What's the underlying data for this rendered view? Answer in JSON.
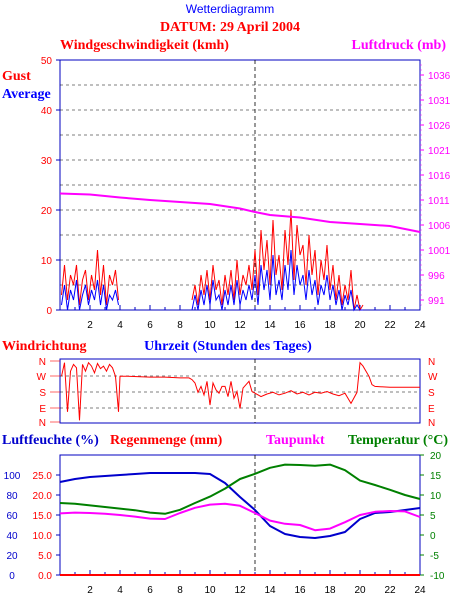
{
  "header": {
    "title": "Wetterdiagramm",
    "date_label": "DATUM: 29 April 2004"
  },
  "colors": {
    "red": "#ff0000",
    "blue": "#0000ff",
    "magenta": "#ff00ff",
    "green": "#008000",
    "darkblue": "#0000cc",
    "axis": "#0000c0"
  },
  "chart_data": [
    {
      "type": "line",
      "id": "wind-pressure",
      "title": "Windgeschwindigkeit (kmh)",
      "ylabel_right": "Luftdruck (mb)",
      "legend": [
        "Gust",
        "Average"
      ],
      "xlim": [
        0,
        24
      ],
      "ylim": [
        0,
        50
      ],
      "y_ticks": [
        0,
        10,
        20,
        30,
        40,
        50
      ],
      "ylim_right": [
        989,
        1039
      ],
      "y_ticks_right": [
        991,
        996,
        1001,
        1006,
        1011,
        1016,
        1021,
        1026,
        1031,
        1036
      ],
      "x_ticks": [
        2,
        4,
        6,
        8,
        10,
        12,
        14,
        16,
        18,
        20,
        22,
        24
      ],
      "grid": true,
      "series": [
        {
          "name": "Gust",
          "color": "#ff0000",
          "x": [
            0.1,
            0.3,
            0.5,
            0.7,
            0.9,
            1.1,
            1.3,
            1.5,
            1.7,
            1.9,
            2.1,
            2.3,
            2.5,
            2.7,
            2.9,
            3.1,
            3.3,
            3.5,
            3.7,
            3.9,
            8.8,
            9.0,
            9.2,
            9.4,
            9.6,
            9.8,
            10.0,
            10.2,
            10.4,
            10.6,
            10.8,
            11.0,
            11.2,
            11.4,
            11.6,
            11.8,
            12.0,
            12.2,
            12.4,
            12.6,
            12.8,
            13.0,
            13.2,
            13.4,
            13.6,
            13.8,
            14.0,
            14.2,
            14.4,
            14.6,
            14.8,
            15.0,
            15.2,
            15.4,
            15.6,
            15.8,
            16.0,
            16.2,
            16.4,
            16.6,
            16.8,
            17.0,
            17.2,
            17.4,
            17.6,
            17.8,
            18.0,
            18.2,
            18.4,
            18.6,
            18.8,
            19.0,
            19.2,
            19.4,
            19.6,
            19.8,
            20.0,
            20.2
          ],
          "y": [
            3,
            9,
            2,
            7,
            5,
            9,
            1,
            6,
            8,
            2,
            7,
            4,
            12,
            3,
            9,
            1,
            7,
            5,
            8,
            2,
            2,
            5,
            1,
            7,
            3,
            8,
            2,
            9,
            4,
            6,
            1,
            7,
            3,
            8,
            2,
            10,
            3,
            7,
            5,
            9,
            4,
            12,
            3,
            16,
            8,
            14,
            5,
            18,
            7,
            11,
            4,
            16,
            9,
            20,
            6,
            17,
            11,
            13,
            5,
            15,
            7,
            12,
            3,
            10,
            6,
            13,
            4,
            9,
            2,
            7,
            1,
            5,
            2,
            8,
            0,
            3,
            0,
            1
          ],
          "x_pressure_note": ""
        },
        {
          "name": "Average",
          "color": "#0000ff",
          "x": [
            0.1,
            0.3,
            0.5,
            0.7,
            0.9,
            1.1,
            1.3,
            1.5,
            1.7,
            1.9,
            2.1,
            2.3,
            2.5,
            2.7,
            2.9,
            3.1,
            3.3,
            3.5,
            3.7,
            3.9,
            8.8,
            9.0,
            9.2,
            9.4,
            9.6,
            9.8,
            10.0,
            10.2,
            10.4,
            10.6,
            10.8,
            11.0,
            11.2,
            11.4,
            11.6,
            11.8,
            12.0,
            12.2,
            12.4,
            12.6,
            12.8,
            13.0,
            13.2,
            13.4,
            13.6,
            13.8,
            14.0,
            14.2,
            14.4,
            14.6,
            14.8,
            15.0,
            15.2,
            15.4,
            15.6,
            15.8,
            16.0,
            16.2,
            16.4,
            16.6,
            16.8,
            17.0,
            17.2,
            17.4,
            17.6,
            17.8,
            18.0,
            18.2,
            18.4,
            18.6,
            18.8,
            19.0,
            19.2,
            19.4,
            19.6,
            19.8,
            20.0,
            20.2
          ],
          "y": [
            1,
            5,
            0,
            4,
            2,
            6,
            0,
            3,
            5,
            1,
            4,
            2,
            6,
            1,
            5,
            0,
            3,
            2,
            4,
            1,
            0,
            3,
            0,
            4,
            1,
            5,
            1,
            6,
            2,
            3,
            0,
            4,
            1,
            5,
            1,
            6,
            1,
            4,
            2,
            5,
            2,
            7,
            1,
            9,
            4,
            8,
            2,
            11,
            3,
            6,
            2,
            9,
            4,
            12,
            3,
            9,
            5,
            7,
            2,
            8,
            3,
            6,
            1,
            5,
            3,
            7,
            2,
            5,
            1,
            4,
            0,
            3,
            1,
            4,
            0,
            1,
            0,
            0
          ]
        },
        {
          "name": "Luftdruck",
          "color": "#ff00ff",
          "axis": "right",
          "x": [
            0,
            2,
            4,
            6,
            8,
            10,
            12,
            13,
            14,
            16,
            18,
            20,
            22,
            24
          ],
          "y": [
            1012.3,
            1012.1,
            1011.5,
            1011.0,
            1010.6,
            1010.2,
            1009.3,
            1008.6,
            1008.0,
            1007.5,
            1006.6,
            1006.2,
            1005.8,
            1004.6
          ]
        }
      ]
    },
    {
      "type": "line",
      "id": "wind-direction",
      "title": "Windrichtung",
      "xlabel": "Uhrzeit (Stunden des Tages)",
      "xlim": [
        0,
        24
      ],
      "y_ticks": [
        "N",
        "W",
        "S",
        "E",
        "N"
      ],
      "grid": true,
      "series": [
        {
          "name": "Windrichtung",
          "color": "#ff0000",
          "x": [
            0.1,
            0.3,
            0.5,
            0.7,
            0.9,
            1.1,
            1.3,
            1.5,
            1.7,
            1.9,
            2.1,
            2.3,
            2.5,
            2.7,
            2.9,
            3.1,
            3.3,
            3.5,
            3.7,
            3.9,
            4.0,
            4.5,
            6,
            7,
            8,
            8.6,
            8.8,
            9.0,
            9.2,
            9.4,
            9.6,
            9.8,
            10.0,
            10.2,
            10.4,
            10.6,
            10.8,
            11.0,
            11.2,
            11.4,
            11.6,
            11.8,
            12.0,
            12.2,
            12.4,
            12.6,
            12.8,
            13.0,
            13.4,
            13.8,
            14.2,
            14.6,
            15.0,
            15.4,
            15.8,
            16.2,
            16.6,
            17.0,
            17.4,
            17.8,
            18.2,
            18.6,
            19.0,
            19.4,
            19.8,
            20.0,
            20.2,
            20.4,
            20.6,
            20.8,
            21.0,
            22,
            23,
            24
          ],
          "y": [
            270,
            350,
            60,
            300,
            340,
            320,
            10,
            340,
            300,
            350,
            330,
            290,
            345,
            315,
            330,
            300,
            340,
            320,
            270,
            60,
            270,
            270,
            265,
            265,
            260,
            260,
            250,
            230,
            175,
            210,
            160,
            240,
            100,
            230,
            190,
            170,
            210,
            210,
            150,
            240,
            140,
            180,
            80,
            200,
            220,
            240,
            180,
            170,
            150,
            165,
            175,
            160,
            170,
            185,
            165,
            175,
            160,
            175,
            170,
            180,
            165,
            155,
            170,
            110,
            175,
            350,
            330,
            300,
            270,
            220,
            210,
            205,
            205,
            205
          ]
        }
      ]
    },
    {
      "type": "line",
      "id": "humidity-temperature",
      "title": "Luftfeuchte (%)",
      "legend": [
        "Luftfeuchte (%)",
        "Regenmenge (mm)",
        "Taupunkt",
        "Temperatur (°C)"
      ],
      "xlim": [
        0,
        24
      ],
      "ylim": [
        0,
        120
      ],
      "y_ticks": [
        0,
        20,
        40,
        60,
        80,
        100
      ],
      "ylim_rain": [
        0,
        25
      ],
      "y_ticks_rain": [
        "0.0",
        "5.0",
        "10.0",
        "15.0",
        "20.0",
        "25.0"
      ],
      "ylim_right": [
        -10,
        20
      ],
      "y_ticks_right": [
        -10,
        -5,
        0,
        5,
        10,
        15,
        20
      ],
      "x_ticks": [
        2,
        4,
        6,
        8,
        10,
        12,
        14,
        16,
        18,
        20,
        22,
        24
      ],
      "grid": true,
      "series": [
        {
          "name": "Luftfeuchte",
          "color": "#0000cc",
          "x": [
            0,
            1,
            2,
            3,
            4,
            5,
            6,
            7,
            8,
            9,
            10,
            11,
            12,
            13,
            14,
            15,
            16,
            17,
            18,
            19,
            20,
            21,
            22,
            23,
            24
          ],
          "y": [
            93,
            96,
            98,
            99,
            100,
            101,
            102,
            102,
            102,
            102,
            101,
            92,
            78,
            65,
            49,
            41,
            38,
            37,
            39,
            43,
            56,
            62,
            63,
            65,
            67
          ]
        },
        {
          "name": "Regenmenge",
          "color": "#ff0000",
          "x": [
            0,
            24
          ],
          "y": [
            0.0,
            0.0
          ]
        },
        {
          "name": "Taupunkt",
          "color": "#ff00ff",
          "x": [
            0,
            1,
            2,
            3,
            4,
            5,
            6,
            7,
            8,
            9,
            10,
            11,
            12,
            13,
            14,
            15,
            16,
            17,
            18,
            19,
            20,
            21,
            22,
            23,
            24
          ],
          "y": [
            5.4,
            5.6,
            5.5,
            5.3,
            5.0,
            4.6,
            4.1,
            4.0,
            5.5,
            6.8,
            7.6,
            7.8,
            7.3,
            5.5,
            3.6,
            2.8,
            2.5,
            1.2,
            1.6,
            3.2,
            5.0,
            5.8,
            6.0,
            5.9,
            4.5
          ]
        },
        {
          "name": "Temperatur",
          "color": "#008000",
          "x": [
            0,
            1,
            2,
            3,
            4,
            5,
            6,
            7,
            8,
            9,
            10,
            11,
            12,
            13,
            14,
            15,
            16,
            17,
            18,
            19,
            20,
            21,
            22,
            23,
            24
          ],
          "y": [
            8.0,
            7.8,
            7.4,
            7.0,
            6.6,
            6.2,
            5.6,
            5.3,
            6.3,
            8.0,
            9.6,
            11.6,
            14.0,
            15.3,
            16.8,
            17.6,
            17.5,
            17.3,
            17.6,
            16.2,
            13.6,
            12.5,
            11.3,
            10.0,
            9.0
          ]
        }
      ]
    }
  ]
}
